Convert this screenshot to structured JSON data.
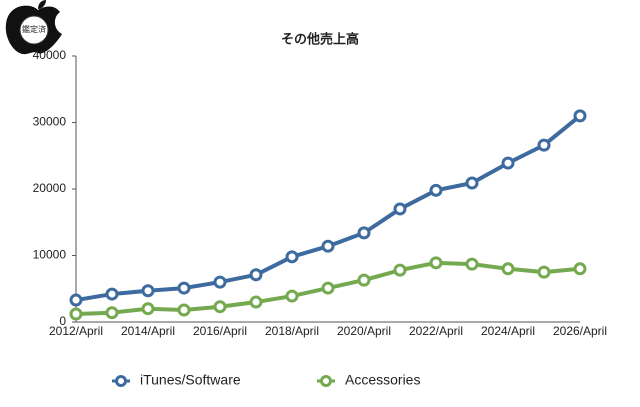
{
  "badge": "鑑定済",
  "chart_data": {
    "type": "line",
    "title": "その他売上高",
    "categories": [
      "2012/April",
      null,
      "2014/April",
      null,
      "2016/April",
      null,
      "2018/April",
      null,
      "2020/April",
      null,
      "2022/April",
      null,
      "2024/April",
      null,
      "2026/April"
    ],
    "series": [
      {
        "name": "iTunes/Software",
        "color": "#3d6b9f",
        "values": [
          3300,
          4200,
          4700,
          5100,
          6000,
          7100,
          9800,
          11400,
          13400,
          17000,
          19800,
          20900,
          23900,
          26600,
          31000
        ]
      },
      {
        "name": "Accessories",
        "color": "#74a94f",
        "values": [
          1200,
          1400,
          2000,
          1800,
          2300,
          3000,
          3900,
          5100,
          6300,
          7800,
          8900,
          8700,
          8000,
          7500,
          8000
        ]
      }
    ],
    "ylim": [
      0,
      40000
    ],
    "yticks": [
      0,
      10000,
      20000,
      30000,
      40000
    ],
    "legend": "bottom"
  }
}
